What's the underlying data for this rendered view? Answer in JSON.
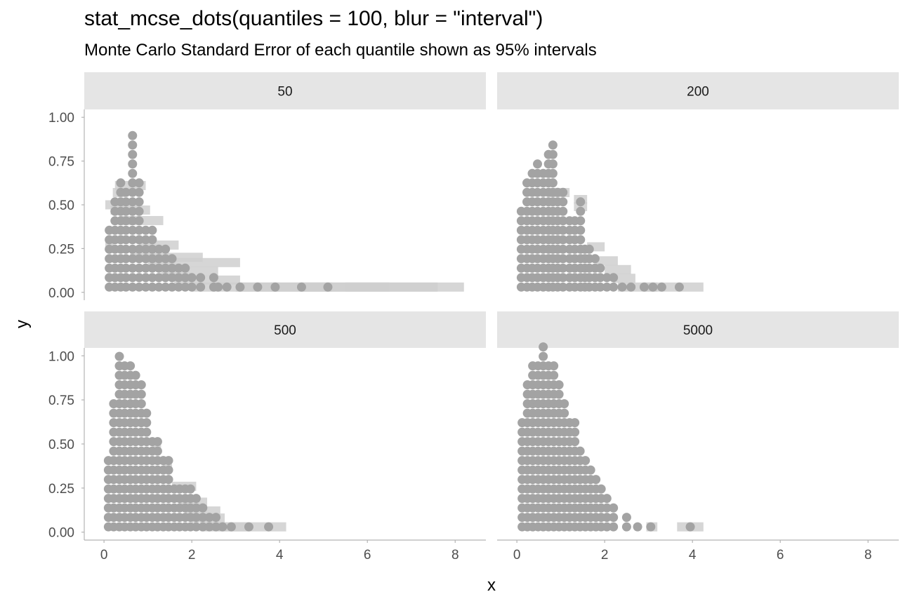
{
  "title": "stat_mcse_dots(quantiles = 100, blur = \"interval\")",
  "subtitle": "Monte Carlo Standard Error of each quantile shown as 95% intervals",
  "chart_data": {
    "type": "scatter",
    "geom": "dots with interval blur (faceted dotplot)",
    "title": "stat_mcse_dots(quantiles = 100, blur = \"interval\")",
    "subtitle": "Monte Carlo Standard Error of each quantile shown as 95% intervals",
    "xlabel": "x",
    "ylabel": "y",
    "xlim": [
      -0.45,
      8.7
    ],
    "ylim": [
      -0.045,
      1.045
    ],
    "x_ticks": [
      0,
      2,
      4,
      6,
      8
    ],
    "x_tick_labels": [
      "0",
      "2",
      "4",
      "6",
      "8"
    ],
    "y_ticks": [
      0,
      0.25,
      0.5,
      0.75,
      1
    ],
    "y_tick_labels": [
      "0.00",
      "0.25",
      "0.50",
      "0.75",
      "1.00"
    ],
    "grid": false,
    "colors": {
      "dot": "#a3a3a3",
      "interval": "#cfcfcf",
      "strip": "#e5e5e5",
      "axis": "#b3b3b3",
      "tick_text": "#4d4d4d"
    },
    "facets": [
      {
        "label": "50",
        "dots": [
          {
            "x": 0.12,
            "n": 7
          },
          {
            "x": 0.25,
            "n": 10
          },
          {
            "x": 0.38,
            "n": 12
          },
          {
            "x": 0.5,
            "n": 11
          },
          {
            "x": 0.65,
            "n": 17
          },
          {
            "x": 0.8,
            "n": 12
          },
          {
            "x": 0.95,
            "n": 7
          },
          {
            "x": 1.1,
            "n": 7
          },
          {
            "x": 1.25,
            "n": 5
          },
          {
            "x": 1.4,
            "n": 5
          },
          {
            "x": 1.55,
            "n": 4
          },
          {
            "x": 1.7,
            "n": 3
          },
          {
            "x": 1.85,
            "n": 3
          },
          {
            "x": 2.0,
            "n": 2
          },
          {
            "x": 2.2,
            "n": 2
          },
          {
            "x": 2.5,
            "n": 2
          },
          {
            "x": 2.6,
            "n": 1
          },
          {
            "x": 2.8,
            "n": 1
          },
          {
            "x": 3.1,
            "n": 1
          },
          {
            "x": 3.5,
            "n": 1
          },
          {
            "x": 3.9,
            "n": 1
          },
          {
            "x": 4.5,
            "n": 1
          },
          {
            "x": 5.1,
            "n": 1
          }
        ],
        "intervals": [
          {
            "x0": 0.03,
            "x1": 0.22,
            "y": 0.26
          },
          {
            "x0": 0.03,
            "x1": 0.22,
            "y": 0.5
          },
          {
            "x0": 0.2,
            "x1": 0.48,
            "y": 0.57
          },
          {
            "x0": 0.25,
            "x1": 0.95,
            "y": 0.61
          },
          {
            "x0": 0.15,
            "x1": 1.05,
            "y": 0.47
          },
          {
            "x0": 0.35,
            "x1": 1.35,
            "y": 0.41
          },
          {
            "x0": 0.8,
            "x1": 1.7,
            "y": 0.27
          },
          {
            "x0": 0.6,
            "x1": 2.25,
            "y": 0.2
          },
          {
            "x0": 1.0,
            "x1": 3.1,
            "y": 0.17
          },
          {
            "x0": 1.3,
            "x1": 2.6,
            "y": 0.12
          },
          {
            "x0": 1.6,
            "x1": 3.1,
            "y": 0.07
          },
          {
            "x0": 2.0,
            "x1": 4.0,
            "y": 0.03
          },
          {
            "x0": 3.0,
            "x1": 5.2,
            "y": 0.03
          },
          {
            "x0": 3.8,
            "x1": 6.5,
            "y": 0.03
          },
          {
            "x0": 4.5,
            "x1": 7.6,
            "y": 0.03
          },
          {
            "x0": 5.5,
            "x1": 8.2,
            "y": 0.03
          }
        ]
      },
      {
        "label": "200",
        "dots": [
          {
            "x": 0.1,
            "n": 9
          },
          {
            "x": 0.23,
            "n": 12
          },
          {
            "x": 0.35,
            "n": 13
          },
          {
            "x": 0.47,
            "n": 14
          },
          {
            "x": 0.6,
            "n": 13
          },
          {
            "x": 0.72,
            "n": 15
          },
          {
            "x": 0.82,
            "n": 16
          },
          {
            "x": 0.93,
            "n": 11
          },
          {
            "x": 1.05,
            "n": 11
          },
          {
            "x": 1.2,
            "n": 8
          },
          {
            "x": 1.32,
            "n": 8
          },
          {
            "x": 1.45,
            "n": 10
          },
          {
            "x": 1.55,
            "n": 5
          },
          {
            "x": 1.65,
            "n": 5
          },
          {
            "x": 1.78,
            "n": 4
          },
          {
            "x": 1.9,
            "n": 3
          },
          {
            "x": 2.05,
            "n": 2
          },
          {
            "x": 2.2,
            "n": 2
          },
          {
            "x": 2.4,
            "n": 1
          },
          {
            "x": 2.6,
            "n": 1
          },
          {
            "x": 2.9,
            "n": 1
          },
          {
            "x": 3.1,
            "n": 1
          },
          {
            "x": 3.3,
            "n": 1
          },
          {
            "x": 3.7,
            "n": 1
          }
        ],
        "intervals": [
          {
            "x0": 0.75,
            "x1": 1.2,
            "y": 0.57
          },
          {
            "x0": 1.3,
            "x1": 1.6,
            "y": 0.53
          },
          {
            "x0": 1.3,
            "x1": 1.6,
            "y": 0.49
          },
          {
            "x0": 1.6,
            "x1": 2.0,
            "y": 0.26
          },
          {
            "x0": 1.8,
            "x1": 2.3,
            "y": 0.18
          },
          {
            "x0": 2.0,
            "x1": 2.6,
            "y": 0.13
          },
          {
            "x0": 2.2,
            "x1": 2.7,
            "y": 0.08
          },
          {
            "x0": 2.3,
            "x1": 3.2,
            "y": 0.03
          },
          {
            "x0": 2.9,
            "x1": 4.25,
            "y": 0.03
          }
        ]
      },
      {
        "label": "500",
        "dots": [
          {
            "x": 0.1,
            "n": 8
          },
          {
            "x": 0.22,
            "n": 14
          },
          {
            "x": 0.35,
            "n": 19
          },
          {
            "x": 0.47,
            "n": 18
          },
          {
            "x": 0.6,
            "n": 18
          },
          {
            "x": 0.72,
            "n": 17
          },
          {
            "x": 0.85,
            "n": 16
          },
          {
            "x": 0.97,
            "n": 13
          },
          {
            "x": 1.1,
            "n": 10
          },
          {
            "x": 1.22,
            "n": 10
          },
          {
            "x": 1.35,
            "n": 8
          },
          {
            "x": 1.47,
            "n": 8
          },
          {
            "x": 1.6,
            "n": 5
          },
          {
            "x": 1.72,
            "n": 5
          },
          {
            "x": 1.85,
            "n": 5
          },
          {
            "x": 1.97,
            "n": 5
          },
          {
            "x": 2.1,
            "n": 4
          },
          {
            "x": 2.25,
            "n": 3
          },
          {
            "x": 2.4,
            "n": 2
          },
          {
            "x": 2.55,
            "n": 2
          },
          {
            "x": 2.7,
            "n": 1
          },
          {
            "x": 2.9,
            "n": 1
          },
          {
            "x": 3.3,
            "n": 1
          },
          {
            "x": 3.75,
            "n": 1
          }
        ],
        "intervals": [
          {
            "x0": 1.1,
            "x1": 1.3,
            "y": 0.47
          },
          {
            "x0": 1.35,
            "x1": 1.55,
            "y": 0.36
          },
          {
            "x0": 1.55,
            "x1": 2.1,
            "y": 0.26
          },
          {
            "x0": 1.7,
            "x1": 2.35,
            "y": 0.17
          },
          {
            "x0": 1.85,
            "x1": 2.65,
            "y": 0.12
          },
          {
            "x0": 2.0,
            "x1": 2.75,
            "y": 0.08
          },
          {
            "x0": 2.2,
            "x1": 3.3,
            "y": 0.03
          },
          {
            "x0": 2.6,
            "x1": 4.15,
            "y": 0.03
          }
        ]
      },
      {
        "label": "5000",
        "dots": [
          {
            "x": 0.12,
            "n": 12
          },
          {
            "x": 0.24,
            "n": 16
          },
          {
            "x": 0.36,
            "n": 18
          },
          {
            "x": 0.48,
            "n": 18
          },
          {
            "x": 0.6,
            "n": 20
          },
          {
            "x": 0.72,
            "n": 18
          },
          {
            "x": 0.84,
            "n": 18
          },
          {
            "x": 0.96,
            "n": 16
          },
          {
            "x": 1.08,
            "n": 14
          },
          {
            "x": 1.2,
            "n": 12
          },
          {
            "x": 1.32,
            "n": 12
          },
          {
            "x": 1.44,
            "n": 9
          },
          {
            "x": 1.56,
            "n": 8
          },
          {
            "x": 1.68,
            "n": 7
          },
          {
            "x": 1.8,
            "n": 6
          },
          {
            "x": 1.92,
            "n": 5
          },
          {
            "x": 2.05,
            "n": 4
          },
          {
            "x": 2.2,
            "n": 3
          },
          {
            "x": 2.5,
            "n": 2
          },
          {
            "x": 2.75,
            "n": 1
          },
          {
            "x": 3.05,
            "n": 1
          },
          {
            "x": 3.95,
            "n": 1
          }
        ],
        "intervals": [
          {
            "x0": 2.95,
            "x1": 3.2,
            "y": 0.03
          },
          {
            "x0": 3.65,
            "x1": 4.25,
            "y": 0.03
          }
        ]
      }
    ]
  }
}
